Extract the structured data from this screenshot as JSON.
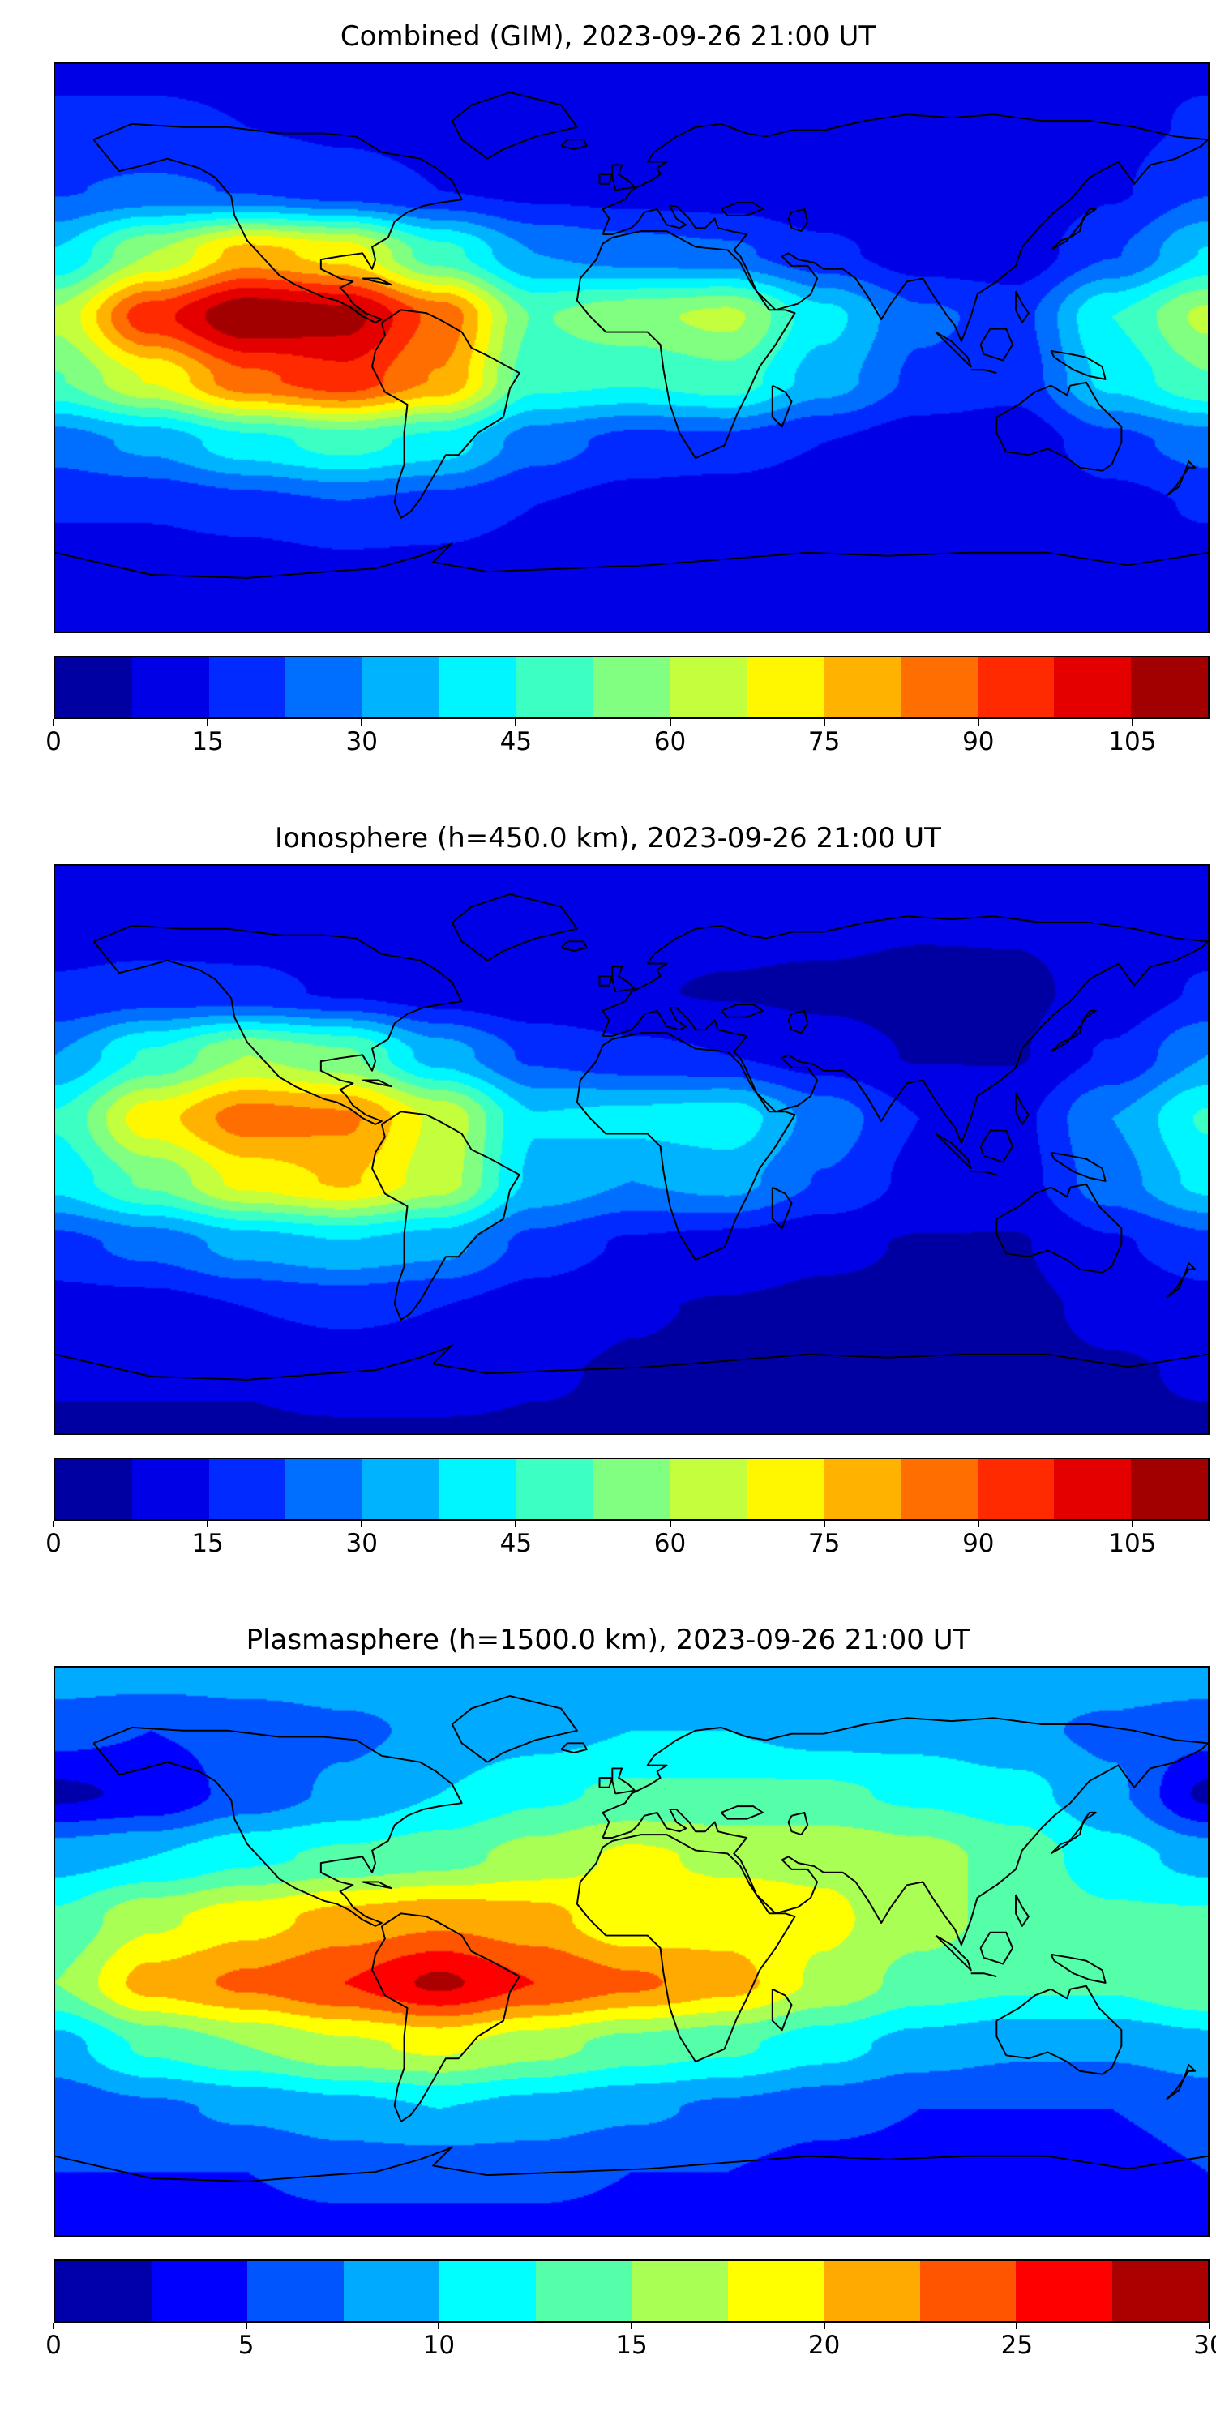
{
  "layout": {
    "background": "#ffffff",
    "panels": 3,
    "colorbar_position": "bottom",
    "coastline_color": "#000000",
    "projection": "equirectangular"
  },
  "chart_data": [
    {
      "type": "heatmap",
      "title": "Combined (GIM), 2023-09-26 21:00 UT",
      "colormap": "jet",
      "vmin": 0,
      "vmax": 112.5,
      "levels": 15,
      "colorbar_ticks": [
        0,
        15,
        30,
        45,
        60,
        75,
        90,
        105
      ],
      "lon": [
        -180,
        -150,
        -120,
        -90,
        -60,
        -30,
        0,
        30,
        60,
        90,
        120,
        150,
        180
      ],
      "lat": [
        90,
        70,
        50,
        30,
        10,
        -10,
        -30,
        -50,
        -70,
        -90
      ],
      "values": [
        [
          14,
          14,
          14,
          14,
          14,
          14,
          14,
          14,
          14,
          14,
          14,
          14,
          14
        ],
        [
          16,
          16,
          15,
          14,
          13,
          13,
          13,
          12,
          12,
          11,
          11,
          13,
          16
        ],
        [
          22,
          24,
          22,
          18,
          15,
          13,
          12,
          11,
          9,
          8,
          8,
          14,
          22
        ],
        [
          38,
          60,
          78,
          72,
          48,
          30,
          26,
          24,
          17,
          11,
          10,
          22,
          38
        ],
        [
          62,
          95,
          112,
          108,
          88,
          52,
          58,
          62,
          40,
          24,
          20,
          45,
          62
        ],
        [
          52,
          68,
          88,
          95,
          82,
          48,
          46,
          50,
          34,
          21,
          18,
          40,
          52
        ],
        [
          26,
          32,
          42,
          48,
          42,
          26,
          20,
          20,
          15,
          11,
          10,
          20,
          26
        ],
        [
          16,
          16,
          19,
          22,
          19,
          15,
          12,
          10,
          8,
          8,
          8,
          12,
          16
        ],
        [
          11,
          11,
          11,
          13,
          13,
          11,
          9,
          8,
          8,
          8,
          8,
          9,
          11
        ],
        [
          9,
          9,
          9,
          9,
          9,
          9,
          9,
          9,
          9,
          9,
          9,
          9,
          9
        ]
      ]
    },
    {
      "type": "heatmap",
      "title": "Ionosphere  (h=450.0 km), 2023-09-26 21:00 UT",
      "colormap": "jet",
      "vmin": 0,
      "vmax": 112.5,
      "levels": 15,
      "colorbar_ticks": [
        0,
        15,
        30,
        45,
        60,
        75,
        90,
        105
      ],
      "lon": [
        -180,
        -150,
        -120,
        -90,
        -60,
        -30,
        0,
        30,
        60,
        90,
        120,
        150,
        180
      ],
      "lat": [
        90,
        70,
        50,
        30,
        10,
        -10,
        -30,
        -50,
        -70,
        -90
      ],
      "values": [
        [
          11,
          11,
          11,
          11,
          11,
          11,
          11,
          11,
          11,
          11,
          11,
          11,
          11
        ],
        [
          12,
          12,
          12,
          11,
          10,
          10,
          10,
          9,
          9,
          8,
          8,
          10,
          12
        ],
        [
          16,
          18,
          17,
          14,
          11,
          9,
          8,
          7,
          6,
          5,
          6,
          10,
          16
        ],
        [
          30,
          46,
          60,
          54,
          34,
          21,
          17,
          15,
          11,
          7,
          7,
          16,
          30
        ],
        [
          46,
          72,
          86,
          84,
          66,
          38,
          40,
          42,
          27,
          15,
          13,
          30,
          46
        ],
        [
          40,
          54,
          70,
          76,
          64,
          36,
          30,
          33,
          22,
          13,
          12,
          27,
          40
        ],
        [
          20,
          25,
          33,
          37,
          33,
          20,
          14,
          12,
          9,
          7,
          7,
          14,
          20
        ],
        [
          12,
          12,
          15,
          17,
          15,
          11,
          8,
          7,
          6,
          6,
          6,
          9,
          12
        ],
        [
          8,
          8,
          8,
          10,
          10,
          8,
          7,
          6,
          6,
          6,
          6,
          7,
          8
        ],
        [
          7,
          7,
          7,
          7,
          7,
          7,
          7,
          7,
          7,
          7,
          7,
          7,
          7
        ]
      ]
    },
    {
      "type": "heatmap",
      "title": "Plasmasphere (h=1500.0 km), 2023-09-26 21:00 UT",
      "colormap": "jet",
      "vmin": 0,
      "vmax": 30,
      "levels": 12,
      "colorbar_ticks": [
        0,
        5,
        10,
        15,
        20,
        25,
        30
      ],
      "lon": [
        -180,
        -150,
        -120,
        -90,
        -60,
        -30,
        0,
        30,
        60,
        90,
        120,
        150,
        180
      ],
      "lat": [
        90,
        70,
        50,
        30,
        10,
        -10,
        -30,
        -50,
        -70,
        -90
      ],
      "values": [
        [
          9,
          9,
          9,
          9,
          9,
          9,
          9,
          9,
          9,
          9,
          9,
          9,
          9
        ],
        [
          6,
          5,
          6,
          7,
          8,
          9,
          10,
          10,
          9,
          9,
          8,
          7,
          6
        ],
        [
          2,
          3,
          6,
          8,
          10,
          12,
          13,
          13,
          13,
          12,
          11,
          8,
          2
        ],
        [
          9,
          10,
          12,
          13,
          14,
          16,
          18,
          17,
          17,
          16,
          14,
          11,
          9
        ],
        [
          13,
          17,
          19,
          21,
          22,
          21,
          18,
          19,
          18,
          16,
          14,
          13,
          13
        ],
        [
          15,
          21,
          23,
          25,
          28,
          25,
          23,
          21,
          17,
          14,
          13,
          13,
          15
        ],
        [
          9,
          13,
          15,
          17,
          18,
          16,
          14,
          13,
          11,
          9,
          8,
          8,
          9
        ],
        [
          6,
          7,
          8,
          9,
          10,
          9,
          8,
          7,
          6,
          5,
          5,
          5,
          6
        ],
        [
          5,
          5,
          5,
          6,
          6,
          6,
          5,
          5,
          4,
          4,
          4,
          4,
          5
        ],
        [
          4,
          4,
          4,
          4,
          4,
          4,
          4,
          4,
          4,
          4,
          4,
          4,
          4
        ]
      ]
    }
  ]
}
